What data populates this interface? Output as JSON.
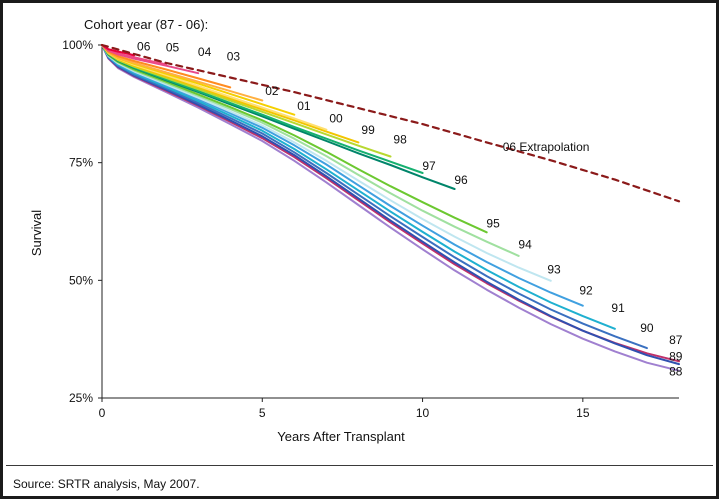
{
  "source_note": "Source: SRTR analysis, May 2007.",
  "chart_data": {
    "type": "line",
    "title": "Cohort year (87 - 06):",
    "xlabel": "Years After Transplant",
    "ylabel": "Survival",
    "xlim": [
      0,
      18
    ],
    "ylim": [
      25,
      100
    ],
    "x_ticks": [
      0,
      5,
      10,
      15
    ],
    "y_ticks": [
      25,
      50,
      75,
      100
    ],
    "y_tick_labels": [
      "25%",
      "50%",
      "75%",
      "100%"
    ],
    "grid": false,
    "series": [
      {
        "name": "06 Extrapolation",
        "color": "#8b1a1a",
        "dashed": true,
        "label_at": [
          12.5,
          77.5
        ],
        "points": [
          [
            0,
            100
          ],
          [
            2,
            96.2
          ],
          [
            4,
            93.1
          ],
          [
            6,
            90.0
          ],
          [
            8,
            86.6
          ],
          [
            10,
            83.2
          ],
          [
            12,
            79.3
          ],
          [
            14,
            75.5
          ],
          [
            16,
            71.4
          ],
          [
            18,
            66.8
          ]
        ]
      },
      {
        "name": "06",
        "color": "#e8003a",
        "label_at": [
          1.3,
          98.8
        ],
        "points": [
          [
            0,
            100
          ],
          [
            0.2,
            99.1
          ],
          [
            0.5,
            98.6
          ],
          [
            0.8,
            98.2
          ],
          [
            1.0,
            97.8
          ]
        ]
      },
      {
        "name": "05",
        "color": "#ef4a86",
        "label_at": [
          2.2,
          98.6
        ],
        "points": [
          [
            0,
            100
          ],
          [
            0.2,
            98.9
          ],
          [
            0.5,
            98.2
          ],
          [
            1,
            97.4
          ],
          [
            1.5,
            96.6
          ],
          [
            2.0,
            95.9
          ]
        ]
      },
      {
        "name": "04",
        "color": "#e84a8a",
        "label_at": [
          3.2,
          97.7
        ],
        "points": [
          [
            0,
            100
          ],
          [
            0.2,
            98.8
          ],
          [
            0.5,
            98.0
          ],
          [
            1,
            97.1
          ],
          [
            2,
            95.6
          ],
          [
            3,
            94.0
          ]
        ]
      },
      {
        "name": "03",
        "color": "#ff8b20",
        "label_at": [
          4.1,
          96.7
        ],
        "points": [
          [
            0,
            100
          ],
          [
            0.2,
            98.6
          ],
          [
            0.5,
            97.6
          ],
          [
            1,
            96.6
          ],
          [
            2,
            94.8
          ],
          [
            3,
            92.9
          ],
          [
            4,
            91.0
          ]
        ]
      },
      {
        "name": "02",
        "color": "#ffb040",
        "label_at": [
          5.3,
          89.4
        ],
        "points": [
          [
            0,
            100
          ],
          [
            0.2,
            98.4
          ],
          [
            0.5,
            97.3
          ],
          [
            1,
            96.2
          ],
          [
            2,
            94.2
          ],
          [
            3,
            92.2
          ],
          [
            4,
            90.2
          ],
          [
            5,
            88.2
          ]
        ]
      },
      {
        "name": "01",
        "color": "#f5d000",
        "label_at": [
          6.3,
          86.2
        ],
        "points": [
          [
            0,
            100
          ],
          [
            0.2,
            98.4
          ],
          [
            0.5,
            97.2
          ],
          [
            1,
            96.0
          ],
          [
            2,
            93.9
          ],
          [
            3,
            91.8
          ],
          [
            4,
            89.6
          ],
          [
            5,
            87.4
          ],
          [
            6,
            85.2
          ]
        ]
      },
      {
        "name": "00",
        "color": "#ffe070",
        "label_at": [
          7.3,
          83.5
        ],
        "points": [
          [
            0,
            100
          ],
          [
            0.2,
            98.3
          ],
          [
            0.5,
            97.1
          ],
          [
            1,
            95.8
          ],
          [
            2,
            93.6
          ],
          [
            3,
            91.3
          ],
          [
            4,
            89.0
          ],
          [
            5,
            86.7
          ],
          [
            6,
            84.4
          ],
          [
            7,
            82.0
          ]
        ]
      },
      {
        "name": "99",
        "color": "#f2c500",
        "label_at": [
          8.3,
          81.1
        ],
        "points": [
          [
            0,
            100
          ],
          [
            0.2,
            98.3
          ],
          [
            0.5,
            97.0
          ],
          [
            1,
            95.6
          ],
          [
            2,
            93.3
          ],
          [
            3,
            91.0
          ],
          [
            4,
            88.6
          ],
          [
            5,
            86.3
          ],
          [
            6,
            84.0
          ],
          [
            7,
            81.6
          ],
          [
            8,
            79.3
          ]
        ]
      },
      {
        "name": "98",
        "color": "#b8d830",
        "label_at": [
          9.3,
          79.1
        ],
        "points": [
          [
            0,
            100
          ],
          [
            0.2,
            98.2
          ],
          [
            0.5,
            96.8
          ],
          [
            1,
            95.4
          ],
          [
            2,
            93.0
          ],
          [
            3,
            90.6
          ],
          [
            4,
            88.2
          ],
          [
            5,
            85.8
          ],
          [
            6,
            83.4
          ],
          [
            7,
            81.0
          ],
          [
            8,
            78.6
          ],
          [
            9,
            76.3
          ]
        ]
      },
      {
        "name": "97",
        "color": "#16b070",
        "label_at": [
          10.2,
          73.4
        ],
        "points": [
          [
            0,
            100
          ],
          [
            0.2,
            98.1
          ],
          [
            0.5,
            96.7
          ],
          [
            1,
            95.2
          ],
          [
            2,
            92.7
          ],
          [
            3,
            90.2
          ],
          [
            4,
            87.7
          ],
          [
            5,
            85.2
          ],
          [
            6,
            82.6
          ],
          [
            7,
            80.1
          ],
          [
            8,
            77.6
          ],
          [
            9,
            75.2
          ],
          [
            10,
            72.8
          ]
        ]
      },
      {
        "name": "96",
        "color": "#00856a",
        "label_at": [
          11.2,
          70.5
        ],
        "points": [
          [
            0,
            100
          ],
          [
            0.2,
            98.0
          ],
          [
            0.5,
            96.6
          ],
          [
            1,
            95.1
          ],
          [
            2,
            92.5
          ],
          [
            3,
            90.0
          ],
          [
            4,
            87.4
          ],
          [
            5,
            84.8
          ],
          [
            6,
            82.2
          ],
          [
            7,
            79.6
          ],
          [
            8,
            77.0
          ],
          [
            9,
            74.5
          ],
          [
            10,
            71.9
          ],
          [
            11,
            69.4
          ]
        ]
      },
      {
        "name": "95",
        "color": "#6cc830",
        "label_at": [
          12.2,
          61.2
        ],
        "points": [
          [
            0,
            100
          ],
          [
            0.2,
            97.9
          ],
          [
            0.5,
            96.4
          ],
          [
            1,
            94.8
          ],
          [
            2,
            92.2
          ],
          [
            3,
            89.5
          ],
          [
            4,
            86.8
          ],
          [
            5,
            84.0
          ],
          [
            6,
            80.8
          ],
          [
            7,
            77.3
          ],
          [
            8,
            73.6
          ],
          [
            9,
            70.0
          ],
          [
            10,
            66.6
          ],
          [
            11,
            63.3
          ],
          [
            12,
            60.2
          ]
        ]
      },
      {
        "name": "94",
        "color": "#a0e0a0",
        "label_at": [
          13.2,
          56.8
        ],
        "points": [
          [
            0,
            100
          ],
          [
            0.2,
            97.8
          ],
          [
            0.5,
            96.3
          ],
          [
            1,
            94.6
          ],
          [
            2,
            91.9
          ],
          [
            3,
            89.2
          ],
          [
            4,
            86.4
          ],
          [
            5,
            83.5
          ],
          [
            6,
            80.1
          ],
          [
            7,
            76.4
          ],
          [
            8,
            72.4
          ],
          [
            9,
            68.5
          ],
          [
            10,
            64.8
          ],
          [
            11,
            61.4
          ],
          [
            12,
            58.2
          ],
          [
            13,
            55.2
          ]
        ]
      },
      {
        "name": "93",
        "color": "#bfe6f0",
        "label_at": [
          14.1,
          51.5
        ],
        "points": [
          [
            0,
            100
          ],
          [
            0.2,
            97.7
          ],
          [
            0.5,
            96.1
          ],
          [
            1,
            94.4
          ],
          [
            2,
            91.6
          ],
          [
            3,
            88.8
          ],
          [
            4,
            85.9
          ],
          [
            5,
            82.9
          ],
          [
            6,
            79.3
          ],
          [
            7,
            75.4
          ],
          [
            8,
            71.2
          ],
          [
            9,
            67.0
          ],
          [
            10,
            63.0
          ],
          [
            11,
            59.3
          ],
          [
            12,
            55.8
          ],
          [
            13,
            52.7
          ],
          [
            14,
            49.9
          ]
        ]
      },
      {
        "name": "92",
        "color": "#40a0e0",
        "label_at": [
          15.1,
          47.0
        ],
        "points": [
          [
            0,
            100
          ],
          [
            0.2,
            97.6
          ],
          [
            0.5,
            96.0
          ],
          [
            1,
            94.2
          ],
          [
            2,
            91.4
          ],
          [
            3,
            88.5
          ],
          [
            4,
            85.5
          ],
          [
            5,
            82.4
          ],
          [
            6,
            78.7
          ],
          [
            7,
            74.6
          ],
          [
            8,
            70.2
          ],
          [
            9,
            65.8
          ],
          [
            10,
            61.6
          ],
          [
            11,
            57.6
          ],
          [
            12,
            53.9
          ],
          [
            13,
            50.5
          ],
          [
            14,
            47.4
          ],
          [
            15,
            44.6
          ]
        ]
      },
      {
        "name": "91",
        "color": "#1fb0d0",
        "label_at": [
          16.1,
          43.3
        ],
        "points": [
          [
            0,
            100
          ],
          [
            0.2,
            97.5
          ],
          [
            0.5,
            95.8
          ],
          [
            1,
            94.0
          ],
          [
            2,
            91.1
          ],
          [
            3,
            88.1
          ],
          [
            4,
            85.0
          ],
          [
            5,
            81.8
          ],
          [
            6,
            77.9
          ],
          [
            7,
            73.6
          ],
          [
            8,
            69.1
          ],
          [
            9,
            64.6
          ],
          [
            10,
            60.3
          ],
          [
            11,
            56.1
          ],
          [
            12,
            52.2
          ],
          [
            13,
            48.6
          ],
          [
            14,
            45.3
          ],
          [
            15,
            42.4
          ],
          [
            16,
            39.7
          ]
        ]
      },
      {
        "name": "90",
        "color": "#3a70c0",
        "label_at": [
          17.0,
          39.0
        ],
        "points": [
          [
            0,
            100
          ],
          [
            0.2,
            97.4
          ],
          [
            0.5,
            95.6
          ],
          [
            1,
            93.7
          ],
          [
            2,
            90.8
          ],
          [
            3,
            87.7
          ],
          [
            4,
            84.5
          ],
          [
            5,
            81.2
          ],
          [
            6,
            77.2
          ],
          [
            7,
            72.8
          ],
          [
            8,
            68.2
          ],
          [
            9,
            63.6
          ],
          [
            10,
            59.2
          ],
          [
            11,
            54.9
          ],
          [
            12,
            50.9
          ],
          [
            13,
            47.2
          ],
          [
            14,
            43.8
          ],
          [
            15,
            40.8
          ],
          [
            16,
            38.1
          ],
          [
            17,
            35.6
          ]
        ]
      },
      {
        "name": "89",
        "color": "#3050b0",
        "label_at": [
          17.9,
          33.0
        ],
        "points": [
          [
            0,
            100
          ],
          [
            0.2,
            97.3
          ],
          [
            0.5,
            95.4
          ],
          [
            1,
            93.5
          ],
          [
            2,
            90.5
          ],
          [
            3,
            87.3
          ],
          [
            4,
            84.0
          ],
          [
            5,
            80.6
          ],
          [
            6,
            76.6
          ],
          [
            7,
            72.1
          ],
          [
            8,
            67.4
          ],
          [
            9,
            62.7
          ],
          [
            10,
            58.2
          ],
          [
            11,
            53.8
          ],
          [
            12,
            49.7
          ],
          [
            13,
            45.9
          ],
          [
            14,
            42.4
          ],
          [
            15,
            39.3
          ],
          [
            16,
            36.6
          ],
          [
            17,
            34.1
          ],
          [
            18,
            32.2
          ]
        ]
      },
      {
        "name": "87",
        "color": "#c0306a",
        "label_at": [
          17.9,
          36.5
        ],
        "points": [
          [
            0,
            100
          ],
          [
            0.2,
            97.2
          ],
          [
            0.5,
            95.3
          ],
          [
            1,
            93.4
          ],
          [
            2,
            90.3
          ],
          [
            3,
            87.1
          ],
          [
            4,
            83.7
          ],
          [
            5,
            80.2
          ],
          [
            6,
            76.2
          ],
          [
            7,
            71.7
          ],
          [
            8,
            67.0
          ],
          [
            9,
            62.3
          ],
          [
            10,
            57.8
          ],
          [
            11,
            53.4
          ],
          [
            12,
            49.4
          ],
          [
            13,
            45.7
          ],
          [
            14,
            42.3
          ],
          [
            15,
            39.3
          ],
          [
            16,
            36.7
          ],
          [
            17,
            34.5
          ],
          [
            18,
            32.8
          ]
        ]
      },
      {
        "name": "88",
        "color": "#a080d0",
        "label_at": [
          17.9,
          29.8
        ],
        "points": [
          [
            0,
            100
          ],
          [
            0.2,
            97.1
          ],
          [
            0.5,
            95.1
          ],
          [
            1,
            93.2
          ],
          [
            2,
            90.0
          ],
          [
            3,
            86.7
          ],
          [
            4,
            83.2
          ],
          [
            5,
            79.6
          ],
          [
            6,
            75.4
          ],
          [
            7,
            70.8
          ],
          [
            8,
            66.0
          ],
          [
            9,
            61.2
          ],
          [
            10,
            56.6
          ],
          [
            11,
            52.1
          ],
          [
            12,
            48.0
          ],
          [
            13,
            44.2
          ],
          [
            14,
            40.7
          ],
          [
            15,
            37.6
          ],
          [
            16,
            34.9
          ],
          [
            17,
            32.5
          ],
          [
            18,
            30.8
          ]
        ]
      }
    ]
  }
}
